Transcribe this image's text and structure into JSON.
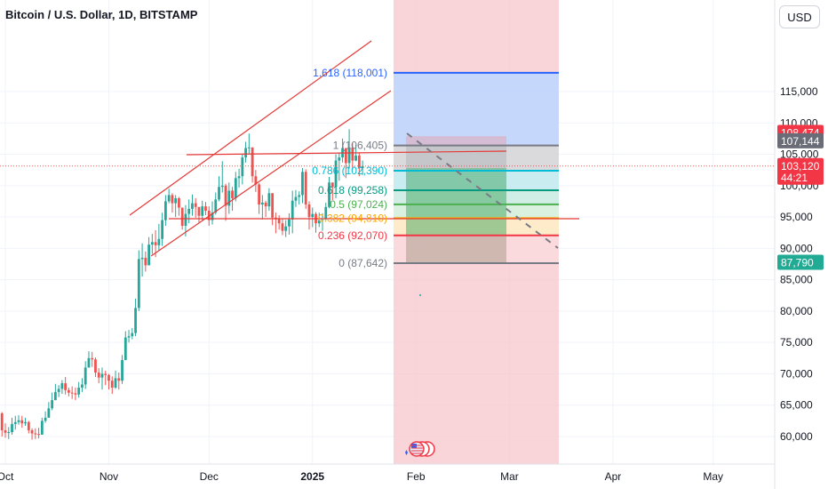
{
  "header": {
    "title": "Bitcoin / U.S. Dollar, 1D, BITSTAMP",
    "currency_button": "USD"
  },
  "colors": {
    "up": "#26a69a",
    "down": "#ef5350",
    "channel": "#e53935",
    "fib_1618": "#2962ff",
    "fib_1": "#787b86",
    "fib_0786": "#00bcd4",
    "fib_0618": "#089981",
    "fib_05": "#4caf50",
    "fib_0382": "#f7a600",
    "fib_0236": "#f23645",
    "fib_0": "#787b86"
  },
  "chart_data": {
    "type": "candlestick",
    "title": "Bitcoin / U.S. Dollar, 1D, BITSTAMP",
    "ylim": [
      56500,
      118700
    ],
    "yticks": [
      60000,
      65000,
      70000,
      75000,
      80000,
      85000,
      90000,
      95000,
      100000,
      105000,
      110000,
      115000
    ],
    "ytick_labels": [
      "60,000",
      "65,000",
      "70,000",
      "75,000",
      "80,000",
      "85,000",
      "90,000",
      "95,000",
      "100,000",
      "105,000",
      "110,000",
      "115,000"
    ],
    "xtick_labels": [
      {
        "date": "2024-10-01",
        "label": "Oct",
        "bold": false
      },
      {
        "date": "2024-11-01",
        "label": "Nov",
        "bold": false
      },
      {
        "date": "2024-12-01",
        "label": "Dec",
        "bold": false
      },
      {
        "date": "2025-01-01",
        "label": "2025",
        "bold": true
      },
      {
        "date": "2025-02-01",
        "label": "Feb",
        "bold": false
      },
      {
        "date": "2025-03-01",
        "label": "Mar",
        "bold": false
      },
      {
        "date": "2025-04-01",
        "label": "Apr",
        "bold": false
      },
      {
        "date": "2025-05-01",
        "label": "May",
        "bold": false
      }
    ],
    "series": [
      {
        "start_date": "2024-09-24",
        "closes": [
          63500,
          63200,
          64200,
          65200,
          65600,
          63700,
          61000,
          60600,
          60700,
          62000,
          62300,
          62600,
          62100,
          62300,
          61000,
          60500,
          60400,
          60300,
          62500,
          63000,
          64500,
          65800,
          67100,
          67600,
          68500,
          67400,
          67000,
          66900,
          66700,
          67800,
          68300,
          71000,
          72500,
          72300,
          70200,
          69400,
          70000,
          69800,
          68900,
          67800,
          69300,
          68900,
          72200,
          75800,
          76000,
          76500,
          80500,
          88300,
          88500,
          87300,
          90600,
          91000,
          90500,
          91500,
          94500,
          97500,
          98500,
          97200,
          98000,
          96500,
          93600,
          95500,
          96300,
          97200,
          96600,
          95200,
          96700,
          96000,
          94500,
          95700,
          97800,
          99800,
          100000,
          96800,
          99200,
          98000,
          101200,
          101500,
          104500,
          106000,
          106100,
          101500,
          100200,
          97000,
          97300,
          96700,
          98800,
          94900,
          94800,
          94000,
          92800,
          93500,
          94600,
          97600,
          98200,
          98500,
          102200,
          97000,
          95000,
          95500,
          94000,
          94500,
          94800,
          96600,
          100500,
          99800,
          104000,
          104500,
          106000,
          103600,
          106100,
          104000,
          104800,
          102800,
          103120
        ],
        "highs": [
          64700,
          64800,
          65800,
          66300,
          66600,
          65600,
          63900,
          62100,
          61500,
          63000,
          63300,
          63400,
          63300,
          63000,
          62500,
          61300,
          61300,
          61400,
          63000,
          64000,
          65500,
          67000,
          68400,
          68200,
          69000,
          69500,
          67800,
          68000,
          67800,
          68700,
          69300,
          72000,
          73600,
          73500,
          72600,
          70900,
          71000,
          70500,
          70000,
          69600,
          70500,
          70200,
          73000,
          76800,
          77000,
          77300,
          82000,
          89700,
          90800,
          89500,
          91800,
          92300,
          92900,
          93900,
          95700,
          98500,
          99500,
          98800,
          98500,
          98200,
          96000,
          96900,
          97800,
          98600,
          98000,
          96500,
          97600,
          97400,
          96700,
          97500,
          98900,
          101500,
          103900,
          100300,
          100500,
          99800,
          102200,
          102700,
          105000,
          107000,
          108300,
          104700,
          102500,
          100400,
          98500,
          97600,
          99600,
          97800,
          95700,
          95300,
          94700,
          94500,
          95600,
          99200,
          99300,
          99100,
          102800,
          102600,
          97500,
          96500,
          95800,
          95700,
          95600,
          97300,
          101400,
          100500,
          105000,
          105200,
          107500,
          105800,
          109000,
          106800,
          106500,
          105300,
          104000
        ],
        "lows": [
          62800,
          62700,
          62800,
          63600,
          64000,
          63000,
          60000,
          59800,
          59600,
          60300,
          61100,
          61900,
          61400,
          61700,
          60500,
          59500,
          59600,
          59700,
          60400,
          62200,
          63700,
          64200,
          66200,
          66300,
          66800,
          66700,
          66400,
          66000,
          65800,
          66200,
          67100,
          67600,
          71000,
          71100,
          69500,
          68500,
          67500,
          68200,
          67500,
          66800,
          67600,
          67500,
          68400,
          74400,
          75000,
          75500,
          76000,
          80000,
          85500,
          86300,
          87400,
          89100,
          88600,
          89700,
          90400,
          93600,
          97200,
          95700,
          95000,
          95200,
          93000,
          91900,
          94000,
          95200,
          94900,
          94100,
          94500,
          95300,
          93600,
          93800,
          95400,
          97500,
          98900,
          94400,
          95500,
          96000,
          97500,
          99700,
          100200,
          103700,
          105100,
          100500,
          99000,
          95500,
          94600,
          95000,
          96000,
          93700,
          92400,
          93000,
          92100,
          91800,
          92200,
          92400,
          96600,
          97000,
          97200,
          96300,
          93000,
          93400,
          92500,
          93400,
          92800,
          94500,
          96400,
          97700,
          98000,
          100800,
          103700,
          101200,
          102700,
          102600,
          103900,
          101500,
          101700
        ]
      }
    ],
    "fibonacci": [
      {
        "label": "1.618 (118,001)",
        "level": 1.618,
        "value": 118001,
        "color": "#2962ff"
      },
      {
        "label": "1 (106,405)",
        "level": 1,
        "value": 106405,
        "color": "#787b86"
      },
      {
        "label": "0.786 (102,390)",
        "level": 0.786,
        "value": 102390,
        "color": "#00bcd4"
      },
      {
        "label": "0.618 (99,258)",
        "level": 0.618,
        "value": 99258,
        "color": "#089981"
      },
      {
        "label": "0.5 (97,024)",
        "level": 0.5,
        "value": 97024,
        "color": "#4caf50"
      },
      {
        "label": "0.382 (94,810)",
        "level": 0.382,
        "value": 94810,
        "color": "#f7a600"
      },
      {
        "label": "0.236 (92,070)",
        "level": 0.236,
        "value": 92070,
        "color": "#f23645"
      },
      {
        "label": "0 (87,642)",
        "level": 0,
        "value": 87642,
        "color": "#787b86"
      }
    ],
    "price_labels": [
      {
        "text": "108,474",
        "value": 108474,
        "bg": "#f23645",
        "fg": "#ffffff"
      },
      {
        "text": "107,144",
        "value": 107144,
        "bg": "#6a6d78",
        "fg": "#ffffff"
      },
      {
        "text": "103,120",
        "value": 103120,
        "bg": "#f23645",
        "fg": "#ffffff",
        "sub": "44:21"
      },
      {
        "text": "87,790",
        "value": 87790,
        "bg": "#22ab94",
        "fg": "#ffffff"
      }
    ],
    "last_price": 103120
  }
}
